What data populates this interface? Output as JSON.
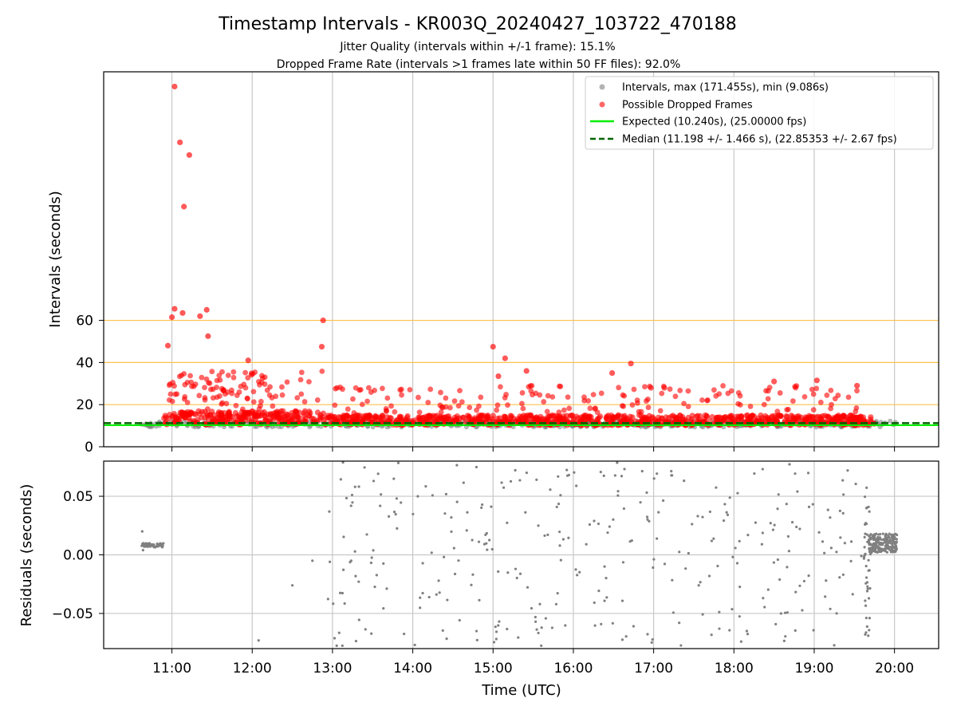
{
  "chart_data": {
    "type": "scatter",
    "title": "Timestamp Intervals - KR003Q_20240427_103722_470188",
    "subtitle_lines": [
      "Jitter Quality (intervals within +/-1 frame): 15.1%",
      "Dropped Frame Rate (intervals >1 frames late within 50 FF files): 92.0%"
    ],
    "xlabel": "Time (UTC)",
    "x_ticks": [
      "11:00",
      "12:00",
      "13:00",
      "14:00",
      "15:00",
      "16:00",
      "17:00",
      "18:00",
      "19:00",
      "20:00"
    ],
    "x_range_hours": [
      10.15,
      20.55
    ],
    "panels": [
      {
        "name": "intervals",
        "ylabel": "Intervals (seconds)",
        "y_ticks": [
          "0",
          "20",
          "40",
          "60"
        ],
        "ylim": [
          0,
          178
        ],
        "grid": "vertical",
        "threshold_lines": [
          20,
          40,
          60
        ],
        "threshold_color": "#ffc04d",
        "expected_value": 10.24,
        "median_value": 11.198,
        "legend": {
          "placement": "top-right",
          "entries": [
            {
              "label": "Intervals, max (171.455s), min (9.086s)",
              "color": "#808080",
              "kind": "marker"
            },
            {
              "label": "Possible Dropped Frames",
              "color": "#ff0000",
              "kind": "marker"
            },
            {
              "label": "Expected (10.240s), (25.00000 fps)",
              "color": "#00ee00",
              "kind": "line"
            },
            {
              "label": "Median (11.198 +/- 1.466 s), (22.85353 +/- 2.67 fps)",
              "color": "#006400",
              "kind": "dashed"
            }
          ]
        },
        "outliers": [
          {
            "x": "11:02",
            "y": 171.0
          },
          {
            "x": "11:06",
            "y": 144.5
          },
          {
            "x": "11:13",
            "y": 138.5
          },
          {
            "x": "11:09",
            "y": 114.0
          },
          {
            "x": "11:02",
            "y": 65.5
          },
          {
            "x": "11:26",
            "y": 65.0
          },
          {
            "x": "11:08",
            "y": 63.5
          },
          {
            "x": "11:21",
            "y": 62.0
          },
          {
            "x": "11:00",
            "y": 61.5
          },
          {
            "x": "12:53",
            "y": 60.0
          },
          {
            "x": "11:27",
            "y": 52.5
          },
          {
            "x": "10:57",
            "y": 48.0
          },
          {
            "x": "12:52",
            "y": 47.5
          },
          {
            "x": "15:00",
            "y": 47.5
          },
          {
            "x": "15:09",
            "y": 42.0
          },
          {
            "x": "11:57",
            "y": 41.0
          },
          {
            "x": "16:43",
            "y": 39.5
          },
          {
            "x": "15:25",
            "y": 36.0
          },
          {
            "x": "16:29",
            "y": 35.0
          },
          {
            "x": "15:04",
            "y": 33.5
          },
          {
            "x": "18:30",
            "y": 31.0
          },
          {
            "x": "19:02",
            "y": 31.5
          },
          {
            "x": "17:08",
            "y": 28.0
          },
          {
            "x": "16:58",
            "y": 28.0
          },
          {
            "x": "19:32",
            "y": 29.0
          }
        ]
      },
      {
        "name": "residuals",
        "ylabel": "Residuals (seconds)",
        "y_ticks": [
          "0.05",
          "0.00",
          "−0.05"
        ],
        "ylim": [
          -0.08,
          0.08
        ],
        "grid": "both",
        "zero_line_color": "#00ee00",
        "point_color": "#808080"
      }
    ]
  }
}
